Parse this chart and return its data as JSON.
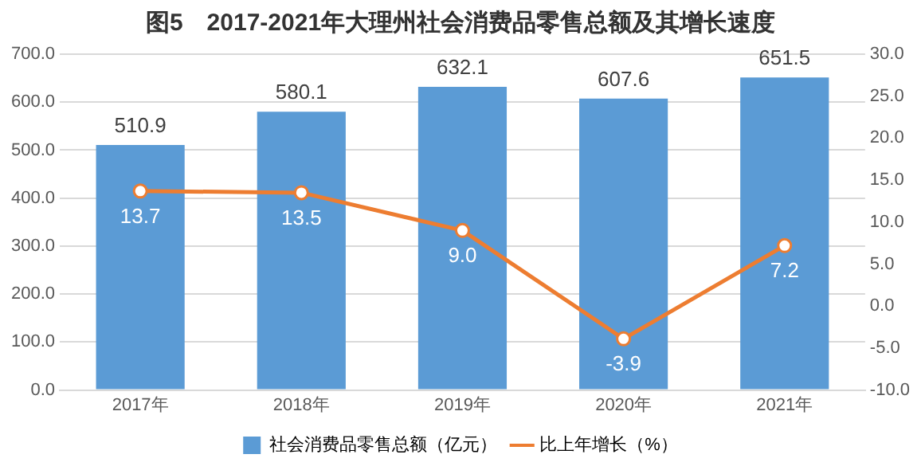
{
  "chart_data": {
    "type": "bar",
    "title": "图5　2017-2021年大理州社会消费品零售总额及其增长速度",
    "categories": [
      "2017年",
      "2018年",
      "2019年",
      "2020年",
      "2021年"
    ],
    "series": [
      {
        "name": "社会消费品零售总额（亿元）",
        "color": "#5b9bd5",
        "values": [
          510.9,
          580.1,
          632.1,
          607.6,
          651.5
        ],
        "value_labels": [
          "510.9",
          "580.1",
          "632.1",
          "607.6",
          "651.5"
        ]
      },
      {
        "name": "比上年增长（%）",
        "type": "line",
        "axis": "y2",
        "color": "#ed7d31",
        "marker": "circle",
        "values": [
          13.7,
          13.5,
          9.0,
          -3.9,
          7.2
        ],
        "value_labels": [
          "13.7",
          "13.5",
          "9.0",
          "-3.9",
          "7.2"
        ]
      }
    ],
    "ylim": [
      0,
      700
    ],
    "yticks": [
      {
        "value": 0,
        "label": "0.0"
      },
      {
        "value": 100,
        "label": "100.0"
      },
      {
        "value": 200,
        "label": "200.0"
      },
      {
        "value": 300,
        "label": "300.0"
      },
      {
        "value": 400,
        "label": "400.0"
      },
      {
        "value": 500,
        "label": "500.0"
      },
      {
        "value": 600,
        "label": "600.0"
      },
      {
        "value": 700,
        "label": "700.0"
      }
    ],
    "y2lim": [
      -10,
      30
    ],
    "y2ticks": [
      {
        "value": -10,
        "label": "-10.0"
      },
      {
        "value": -5,
        "label": "-5.0"
      },
      {
        "value": 0,
        "label": "0.0"
      },
      {
        "value": 5,
        "label": "5.0"
      },
      {
        "value": 10,
        "label": "10.0"
      },
      {
        "value": 15,
        "label": "15.0"
      },
      {
        "value": 20,
        "label": "20.0"
      },
      {
        "value": 25,
        "label": "25.0"
      },
      {
        "value": 30,
        "label": "30.0"
      }
    ],
    "grid": "y",
    "legend": "bottom"
  }
}
